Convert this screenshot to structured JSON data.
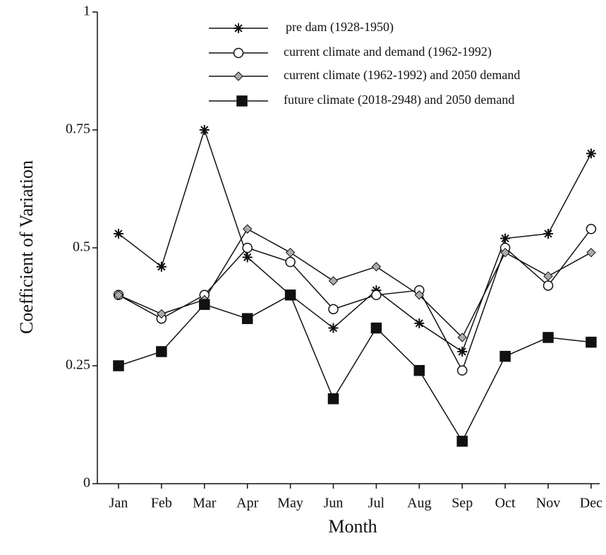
{
  "chart_data": {
    "type": "line",
    "x_label": "Month",
    "y_label": "Coefficient of Variation",
    "categories": [
      "Jan",
      "Feb",
      "Mar",
      "Apr",
      "May",
      "Jun",
      "Jul",
      "Aug",
      "Sep",
      "Oct",
      "Nov",
      "Dec"
    ],
    "ylim": [
      0,
      1
    ],
    "yticks": [
      0,
      0.25,
      0.5,
      0.75,
      1
    ],
    "grid": false,
    "series": [
      {
        "name": "pre dam (1928-1950)",
        "color": "#111111",
        "marker": "star",
        "values": [
          0.53,
          0.46,
          0.75,
          0.48,
          0.4,
          0.33,
          0.41,
          0.34,
          0.28,
          0.52,
          0.53,
          0.7
        ]
      },
      {
        "name": "current climate and demand (1962-1992)",
        "color": "#ffffff",
        "marker": "circle",
        "values": [
          0.4,
          0.35,
          0.4,
          0.5,
          0.47,
          0.37,
          0.4,
          0.41,
          0.24,
          0.5,
          0.42,
          0.54
        ]
      },
      {
        "name": "current climate (1962-1992) and 2050 demand",
        "color": "#aaaaaa",
        "marker": "diamond",
        "values": [
          0.4,
          0.36,
          0.39,
          0.54,
          0.49,
          0.43,
          0.46,
          0.4,
          0.31,
          0.49,
          0.44,
          0.49
        ]
      },
      {
        "name": "future climate (2018-2948) and 2050 demand",
        "color": "#111111",
        "marker": "square",
        "values": [
          0.25,
          0.28,
          0.38,
          0.35,
          0.4,
          0.18,
          0.33,
          0.24,
          0.09,
          0.27,
          0.31,
          0.3
        ]
      }
    ]
  }
}
